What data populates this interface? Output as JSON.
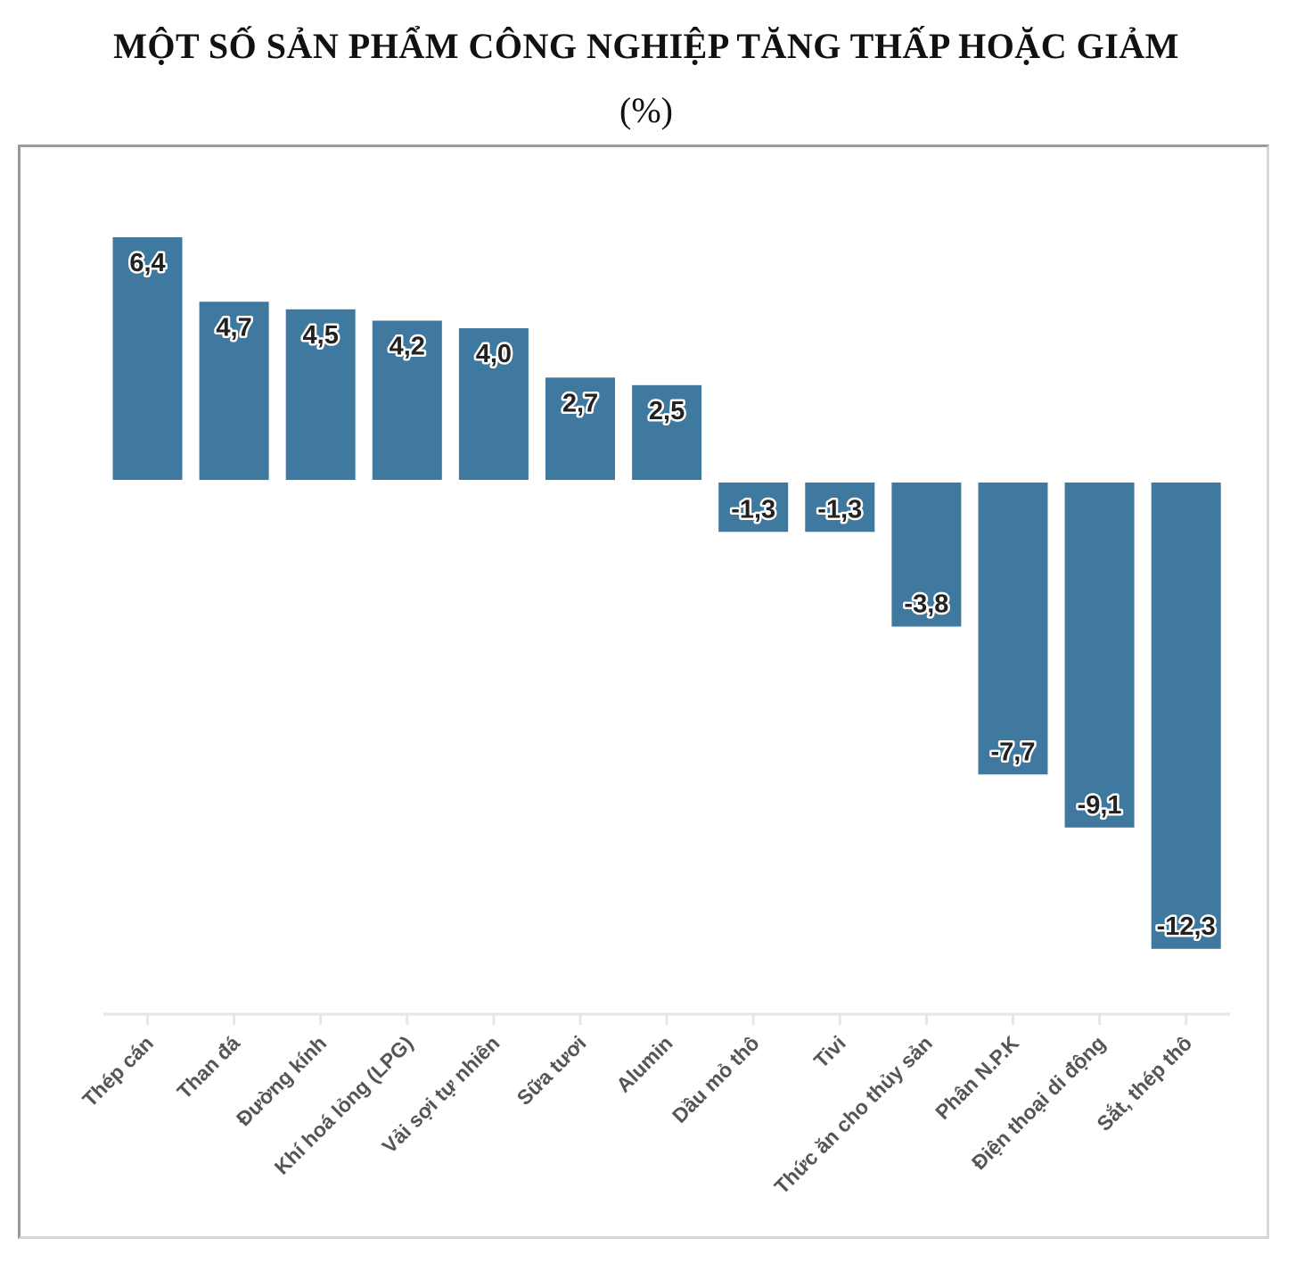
{
  "chart_data": {
    "type": "bar",
    "title": "MỘT SỐ SẢN PHẨM CÔNG NGHIỆP TĂNG THẤP HOẶC GIẢM",
    "subtitle": "(%)",
    "categories": [
      "Thép cán",
      "Than đá",
      "Đường kính",
      "Khí hoá lỏng (LPG)",
      "Vải sợi tự nhiên",
      "Sữa tươi",
      "Alumin",
      "Dầu mỏ thô",
      "Tivi",
      "Thức ăn cho thủy sản",
      "Phân N.P.K",
      "Điện thoại di động",
      "Sắt, thép thô"
    ],
    "values": [
      6.4,
      4.7,
      4.5,
      4.2,
      4.0,
      2.7,
      2.5,
      -1.3,
      -1.3,
      -3.8,
      -7.7,
      -9.1,
      -12.3
    ],
    "value_labels": [
      "6,4",
      "4,7",
      "4,5",
      "4,2",
      "4,0",
      "2,7",
      "2,5",
      "-1,3",
      "-1,3",
      "-3,8",
      "-7,7",
      "-9,1",
      "-12,3"
    ],
    "ylim": [
      -14.0,
      6.4
    ],
    "xlabel": "",
    "ylabel": "",
    "grid": false,
    "legend": "none",
    "bar_color": "#3f79a0",
    "axis_color": "#e6e6e6"
  }
}
